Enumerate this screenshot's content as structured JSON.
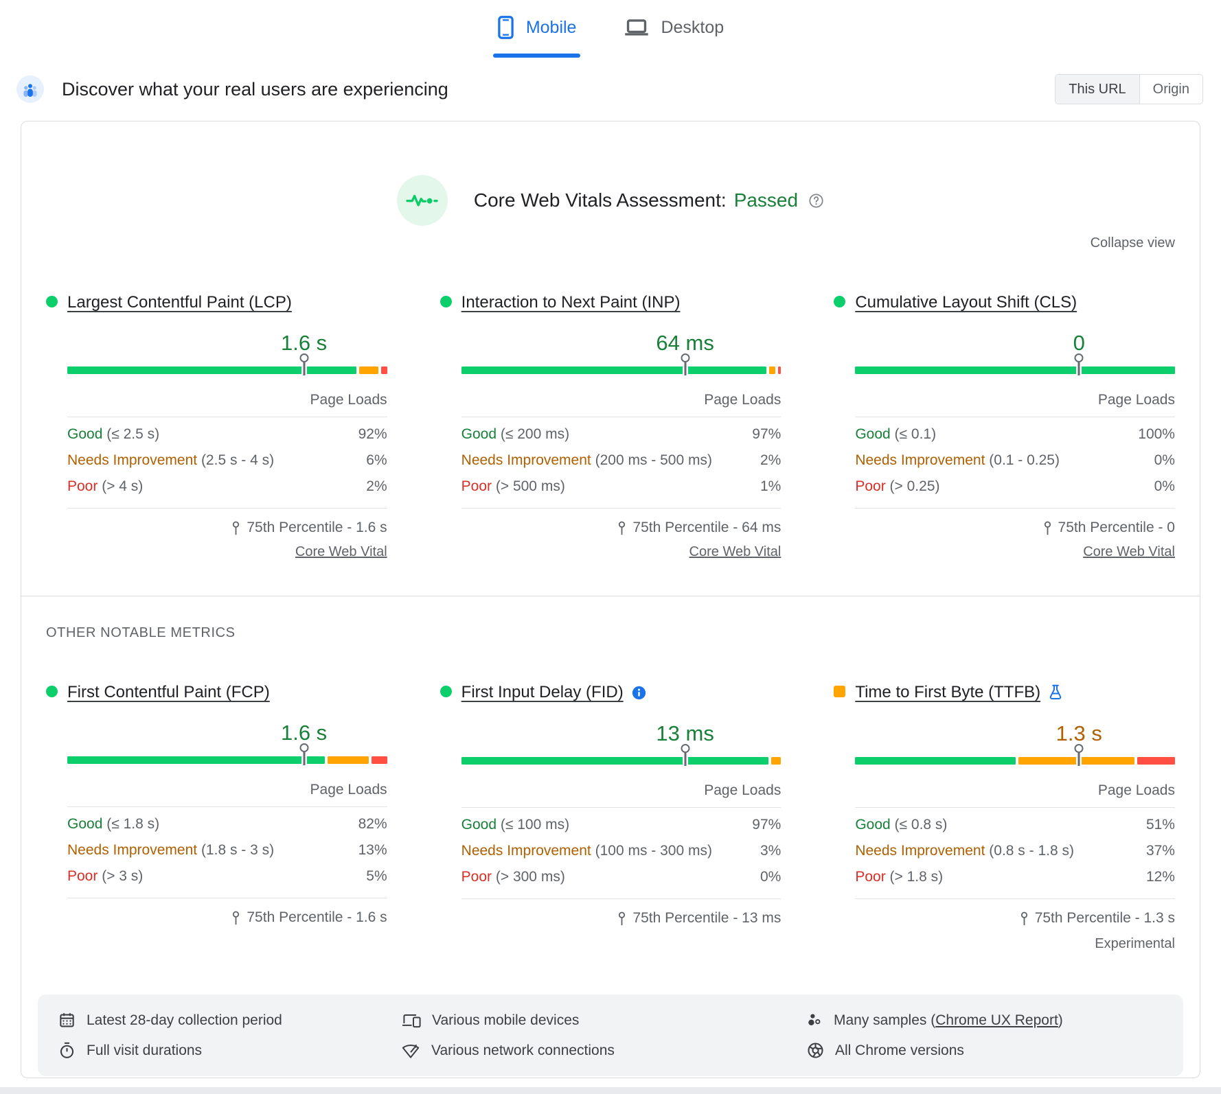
{
  "tabs": [
    {
      "label": "Mobile",
      "icon": "mobile-phone-icon",
      "active": true
    },
    {
      "label": "Desktop",
      "icon": "desktop-icon",
      "active": false
    }
  ],
  "header": {
    "title": "Discover what your real users are experiencing",
    "toggle": [
      {
        "label": "This URL",
        "active": true
      },
      {
        "label": "Origin",
        "active": false
      }
    ]
  },
  "assessment": {
    "title": "Core Web Vitals Assessment:",
    "result": "Passed",
    "collapse_label": "Collapse view"
  },
  "sections": {
    "other_label": "OTHER NOTABLE METRICS"
  },
  "colors": {
    "good_bar": "#0cce6b",
    "average_bar": "#ffa400",
    "poor_bar": "#ff4e42",
    "good_text": "#188038",
    "average_text": "#b06000",
    "poor_text": "#d93025",
    "accent_blue": "#1a73e8"
  },
  "metrics": {
    "core": [
      {
        "id": "lcp",
        "title": "Largest Contentful Paint (LCP)",
        "bullet": "green",
        "value": "1.6 s",
        "value_color": "green",
        "marker_pct": 74,
        "segments": [
          {
            "color": "green",
            "pct": 92
          },
          {
            "color": "orange",
            "pct": 6
          },
          {
            "color": "red",
            "pct": 2
          }
        ],
        "page_loads_label": "Page Loads",
        "rows": [
          {
            "label": "Good",
            "range": "(≤ 2.5 s)",
            "value": "92%",
            "color": "green"
          },
          {
            "label": "Needs Improvement",
            "range": "(2.5 s - 4 s)",
            "value": "6%",
            "color": "orange"
          },
          {
            "label": "Poor",
            "range": "(> 4 s)",
            "value": "2%",
            "color": "red"
          }
        ],
        "percentile": "75th Percentile - 1.6 s",
        "link": "Core Web Vital"
      },
      {
        "id": "inp",
        "title": "Interaction to Next Paint (INP)",
        "bullet": "green",
        "value": "64 ms",
        "value_color": "green",
        "marker_pct": 70,
        "segments": [
          {
            "color": "green",
            "pct": 97
          },
          {
            "color": "orange",
            "pct": 2
          },
          {
            "color": "red",
            "pct": 1
          }
        ],
        "page_loads_label": "Page Loads",
        "rows": [
          {
            "label": "Good",
            "range": "(≤ 200 ms)",
            "value": "97%",
            "color": "green"
          },
          {
            "label": "Needs Improvement",
            "range": "(200 ms - 500 ms)",
            "value": "2%",
            "color": "orange"
          },
          {
            "label": "Poor",
            "range": "(> 500 ms)",
            "value": "1%",
            "color": "red"
          }
        ],
        "percentile": "75th Percentile - 64 ms",
        "link": "Core Web Vital"
      },
      {
        "id": "cls",
        "title": "Cumulative Layout Shift (CLS)",
        "bullet": "green",
        "value": "0",
        "value_color": "green",
        "marker_pct": 70,
        "segments": [
          {
            "color": "green",
            "pct": 100
          },
          {
            "color": "orange",
            "pct": 0
          },
          {
            "color": "red",
            "pct": 0
          }
        ],
        "page_loads_label": "Page Loads",
        "rows": [
          {
            "label": "Good",
            "range": "(≤ 0.1)",
            "value": "100%",
            "color": "green"
          },
          {
            "label": "Needs Improvement",
            "range": "(0.1 - 0.25)",
            "value": "0%",
            "color": "orange"
          },
          {
            "label": "Poor",
            "range": "(> 0.25)",
            "value": "0%",
            "color": "red"
          }
        ],
        "percentile": "75th Percentile - 0",
        "link": "Core Web Vital"
      }
    ],
    "other": [
      {
        "id": "fcp",
        "title": "First Contentful Paint (FCP)",
        "bullet": "green",
        "value": "1.6 s",
        "value_color": "green",
        "marker_pct": 74,
        "segments": [
          {
            "color": "green",
            "pct": 82
          },
          {
            "color": "orange",
            "pct": 13
          },
          {
            "color": "red",
            "pct": 5
          }
        ],
        "page_loads_label": "Page Loads",
        "rows": [
          {
            "label": "Good",
            "range": "(≤ 1.8 s)",
            "value": "82%",
            "color": "green"
          },
          {
            "label": "Needs Improvement",
            "range": "(1.8 s - 3 s)",
            "value": "13%",
            "color": "orange"
          },
          {
            "label": "Poor",
            "range": "(> 3 s)",
            "value": "5%",
            "color": "red"
          }
        ],
        "percentile": "75th Percentile - 1.6 s"
      },
      {
        "id": "fid",
        "title": "First Input Delay (FID)",
        "badge": "info-icon",
        "bullet": "green",
        "value": "13 ms",
        "value_color": "green",
        "marker_pct": 70,
        "segments": [
          {
            "color": "green",
            "pct": 97
          },
          {
            "color": "orange",
            "pct": 3
          },
          {
            "color": "red",
            "pct": 0
          }
        ],
        "page_loads_label": "Page Loads",
        "rows": [
          {
            "label": "Good",
            "range": "(≤ 100 ms)",
            "value": "97%",
            "color": "green"
          },
          {
            "label": "Needs Improvement",
            "range": "(100 ms - 300 ms)",
            "value": "3%",
            "color": "orange"
          },
          {
            "label": "Poor",
            "range": "(> 300 ms)",
            "value": "0%",
            "color": "red"
          }
        ],
        "percentile": "75th Percentile - 13 ms"
      },
      {
        "id": "ttfb",
        "title": "Time to First Byte (TTFB)",
        "badge": "flask-icon",
        "bullet": "orange-square",
        "value": "1.3 s",
        "value_color": "orange",
        "marker_pct": 70,
        "segments": [
          {
            "color": "green",
            "pct": 51
          },
          {
            "color": "orange",
            "pct": 37
          },
          {
            "color": "red",
            "pct": 12
          }
        ],
        "page_loads_label": "Page Loads",
        "rows": [
          {
            "label": "Good",
            "range": "(≤ 0.8 s)",
            "value": "51%",
            "color": "green"
          },
          {
            "label": "Needs Improvement",
            "range": "(0.8 s - 1.8 s)",
            "value": "37%",
            "color": "orange"
          },
          {
            "label": "Poor",
            "range": "(> 1.8 s)",
            "value": "12%",
            "color": "red"
          }
        ],
        "percentile": "75th Percentile - 1.3 s",
        "footnote": "Experimental"
      }
    ]
  },
  "footer": {
    "columns": [
      {
        "items": [
          {
            "icon": "calendar-icon",
            "text": "Latest 28-day collection period"
          },
          {
            "icon": "stopwatch-icon",
            "text": "Full visit durations"
          }
        ]
      },
      {
        "items": [
          {
            "icon": "devices-icon",
            "text": "Various mobile devices"
          },
          {
            "icon": "network-icon",
            "text": "Various network connections"
          }
        ]
      },
      {
        "items": [
          {
            "icon": "samples-icon",
            "text": "Many samples (",
            "link": "Chrome UX Report",
            "text_after": ")"
          },
          {
            "icon": "chrome-icon",
            "text": "All Chrome versions"
          }
        ]
      }
    ]
  }
}
